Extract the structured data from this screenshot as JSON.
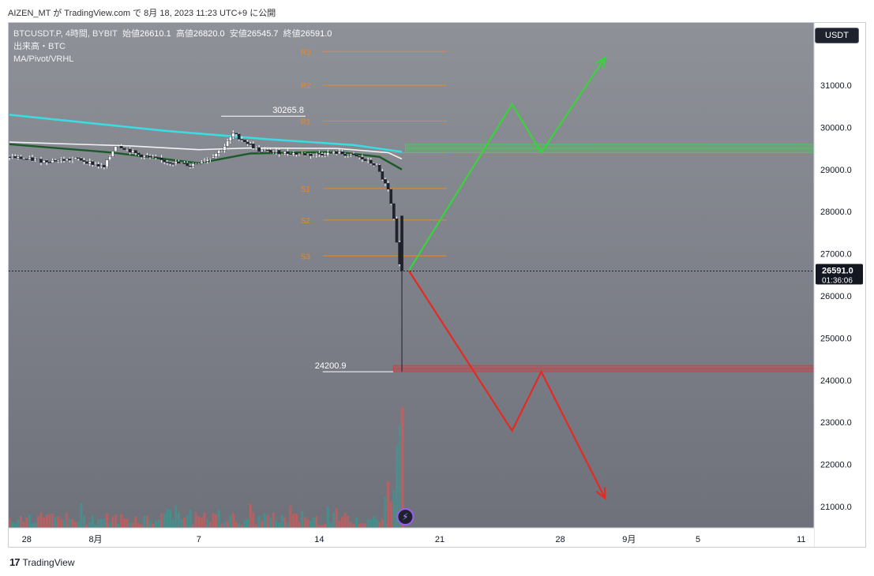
{
  "caption": "AIZEN_MT が TradingView.com で 8月 18, 2023 11:23 UTC+9 に公開",
  "legend": {
    "symbol": "BTCUSDT.P, 4時間, BYBIT",
    "open_label": "始値",
    "open": "26610.1",
    "high_label": "高値",
    "high": "26820.0",
    "low_label": "安値",
    "low": "26545.7",
    "close_label": "終値",
    "close": "26591.0",
    "volume": "出来高・BTC",
    "indicators": "MA/Pivot/VRHL"
  },
  "currency": "USDT",
  "footer": "TradingView",
  "colors": {
    "background_top": "#8e9198",
    "background_bottom": "#6d7079",
    "ma_cyan": "#3fd9e0",
    "ma_white": "#f2f2f2",
    "ma_dark_green": "#1c5a2a",
    "pivot": "#e6882a",
    "zone_green": "#4ccb5a",
    "zone_red": "#d83b3b",
    "arrow_green": "#39d33c",
    "arrow_red": "#e52a22"
  },
  "chart_data": {
    "type": "candlestick",
    "symbol": "BTCUSDT.P",
    "ylim": [
      20500,
      32000
    ],
    "y_ticks": [
      21000,
      22000,
      23000,
      24000,
      25000,
      26000,
      27000,
      28000,
      29000,
      30000,
      31000
    ],
    "y_tick_labels": [
      "21000.0",
      "22000.0",
      "23000.0",
      "24000.0",
      "25000.0",
      "26000.0",
      "27000.0",
      "28000.0",
      "29000.0",
      "30000.0",
      "31000.0"
    ],
    "x_ticks": [
      {
        "day": -4,
        "label": "28"
      },
      {
        "day": 0,
        "label": "8月"
      },
      {
        "day": 6,
        "label": "7"
      },
      {
        "day": 13,
        "label": "14"
      },
      {
        "day": 20,
        "label": "21"
      },
      {
        "day": 27,
        "label": "28"
      },
      {
        "day": 31,
        "label": "9月"
      },
      {
        "day": 35,
        "label": "5"
      },
      {
        "day": 41,
        "label": "11"
      }
    ],
    "last_price": {
      "value": 26591.0,
      "label": "26591.0",
      "countdown": "01:36:06"
    },
    "price_annotations": [
      {
        "label": "30265.8",
        "value": 30265.8,
        "day_from": 7.3,
        "day_to": 12.2
      },
      {
        "label": "24200.9",
        "value": 24200.9,
        "day_from": 17.3,
        "day_to": 13.2
      }
    ],
    "pivots": [
      {
        "label": "R3",
        "value": 31800
      },
      {
        "label": "R2",
        "value": 31000
      },
      {
        "label": "R1",
        "value": 30150
      },
      {
        "label": "P",
        "value": 29400
      },
      {
        "label": "S1",
        "value": 28550
      },
      {
        "label": "S2",
        "value": 27800
      },
      {
        "label": "S3",
        "value": 26950
      }
    ],
    "pivot_range_days": [
      13.2,
      20.4
    ],
    "zones": [
      {
        "name": "resistance",
        "from": 29400,
        "to": 29600,
        "color": "green"
      },
      {
        "name": "support",
        "from": 24200,
        "to": 24350,
        "color": "red"
      }
    ],
    "scenario_up": [
      {
        "day": 18.2,
        "price": 26600
      },
      {
        "day": 24.2,
        "price": 30550
      },
      {
        "day": 25.9,
        "price": 29400
      },
      {
        "day": 29.6,
        "price": 31650
      }
    ],
    "scenario_down": [
      {
        "day": 18.2,
        "price": 26600
      },
      {
        "day": 24.2,
        "price": 22800
      },
      {
        "day": 25.9,
        "price": 24200
      },
      {
        "day": 29.6,
        "price": 21200
      }
    ],
    "candle_anchors": [
      {
        "day": -5.0,
        "price": 29300
      },
      {
        "day": -3.0,
        "price": 29200
      },
      {
        "day": -1.0,
        "price": 29250
      },
      {
        "day": 0.5,
        "price": 29050
      },
      {
        "day": 1.2,
        "price": 29600
      },
      {
        "day": 2.5,
        "price": 29350
      },
      {
        "day": 4.0,
        "price": 29200
      },
      {
        "day": 5.5,
        "price": 29100
      },
      {
        "day": 6.5,
        "price": 29250
      },
      {
        "day": 7.4,
        "price": 29500
      },
      {
        "day": 8.0,
        "price": 29850
      },
      {
        "day": 9.5,
        "price": 29450
      },
      {
        "day": 11.0,
        "price": 29400
      },
      {
        "day": 12.5,
        "price": 29350
      },
      {
        "day": 14.0,
        "price": 29400
      },
      {
        "day": 15.2,
        "price": 29300
      },
      {
        "day": 16.3,
        "price": 29100
      },
      {
        "day": 17.0,
        "price": 28500
      },
      {
        "day": 17.3,
        "price": 27900
      },
      {
        "day": 17.6,
        "price": 26900
      },
      {
        "day": 17.8,
        "price": 26600
      }
    ],
    "ma_cyan": [
      {
        "day": -5.0,
        "price": 30300
      },
      {
        "day": 4.0,
        "price": 29920
      },
      {
        "day": 10.0,
        "price": 29720
      },
      {
        "day": 15.0,
        "price": 29580
      },
      {
        "day": 17.8,
        "price": 29420
      }
    ],
    "ma_white": [
      {
        "day": -5.0,
        "price": 29650
      },
      {
        "day": 2.0,
        "price": 29560
      },
      {
        "day": 6.0,
        "price": 29470
      },
      {
        "day": 9.0,
        "price": 29510
      },
      {
        "day": 14.0,
        "price": 29500
      },
      {
        "day": 17.0,
        "price": 29400
      },
      {
        "day": 17.8,
        "price": 29250
      }
    ],
    "ma_green": [
      {
        "day": -5.0,
        "price": 29600
      },
      {
        "day": 1.0,
        "price": 29400
      },
      {
        "day": 6.0,
        "price": 29150
      },
      {
        "day": 9.0,
        "price": 29380
      },
      {
        "day": 14.0,
        "price": 29420
      },
      {
        "day": 16.5,
        "price": 29300
      },
      {
        "day": 17.8,
        "price": 29000
      }
    ]
  }
}
